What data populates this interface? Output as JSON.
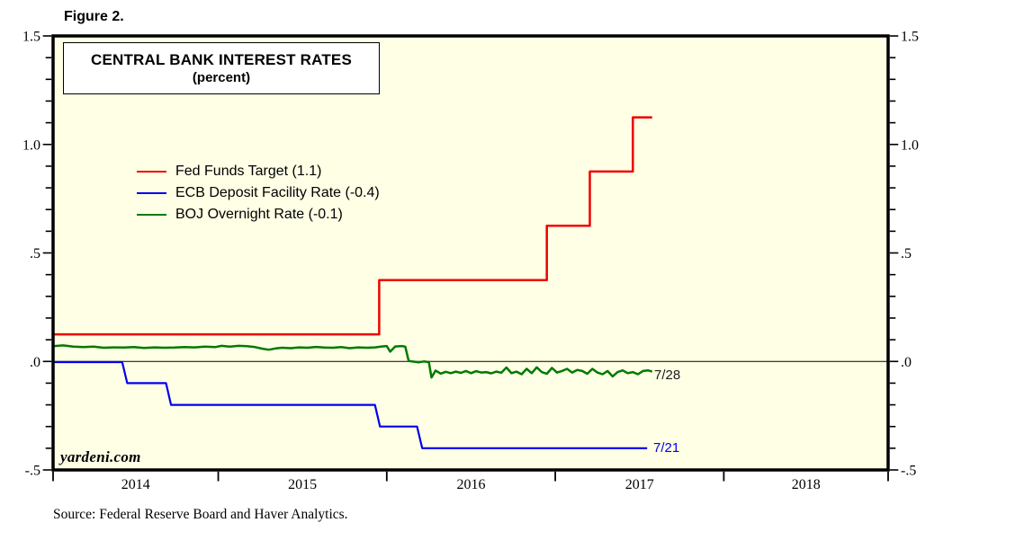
{
  "figure_label": "Figure 2.",
  "chart_data": {
    "type": "line",
    "title": "CENTRAL BANK INTEREST RATES",
    "subtitle": "(percent)",
    "source": "Source: Federal Reserve Board and Haver Analytics.",
    "watermark": "yardeni.com",
    "colors": {
      "plot_bg": "#FFFFE6",
      "frame": "#000000",
      "fed_funds": "#EE0000",
      "ecb": "#0000EE",
      "boj": "#007A00",
      "annotation": "#1a1a1a"
    },
    "x_axis": {
      "range_years": [
        2014.02,
        2018.975
      ],
      "tick_boundaries": [
        2015,
        2016,
        2017,
        2018
      ],
      "year_labels": [
        "2014",
        "2015",
        "2016",
        "2017",
        "2018"
      ],
      "grid": false
    },
    "y_axis": {
      "range": [
        -0.5,
        1.5
      ],
      "minor_tick_step": 0.1,
      "major_tick_step": 0.5,
      "tick_labels": [
        {
          "text": "1.5",
          "value": 1.5
        },
        {
          "text": "1.0",
          "value": 1.0
        },
        {
          "text": ".5",
          "value": 0.5
        },
        {
          "text": ".0",
          "value": 0.0
        },
        {
          "text": "-.5",
          "value": -0.5
        }
      ],
      "mirrored_right": true,
      "zero_line": true
    },
    "legend": {
      "position": "upper-left-inside",
      "items": [
        {
          "label": "Fed Funds Target (1.1)",
          "color": "#EE0000"
        },
        {
          "label": "ECB Deposit Facility Rate (-0.4)",
          "color": "#0000EE"
        },
        {
          "label": "BOJ Overnight Rate (-0.1)",
          "color": "#007A00"
        }
      ]
    },
    "series": [
      {
        "name": "Fed Funds Target",
        "color": "#EE0000",
        "width": 2.5,
        "end_label": null,
        "points": [
          [
            2014.02,
            0.125
          ],
          [
            2015.955,
            0.125
          ],
          [
            2015.955,
            0.375
          ],
          [
            2016.95,
            0.375
          ],
          [
            2016.95,
            0.625
          ],
          [
            2017.205,
            0.625
          ],
          [
            2017.205,
            0.875
          ],
          [
            2017.46,
            0.875
          ],
          [
            2017.46,
            1.125
          ],
          [
            2017.575,
            1.125
          ]
        ]
      },
      {
        "name": "ECB Deposit Facility Rate",
        "color": "#0000EE",
        "width": 2.2,
        "end_label": "7/21",
        "points": [
          [
            2014.02,
            -0.003
          ],
          [
            2014.43,
            -0.003
          ],
          [
            2014.46,
            -0.1
          ],
          [
            2014.69,
            -0.1
          ],
          [
            2014.72,
            -0.2
          ],
          [
            2015.93,
            -0.2
          ],
          [
            2015.96,
            -0.3
          ],
          [
            2016.18,
            -0.3
          ],
          [
            2016.21,
            -0.4
          ],
          [
            2017.545,
            -0.4
          ]
        ]
      },
      {
        "name": "BOJ Overnight Rate",
        "color": "#007A00",
        "width": 2.5,
        "end_label": "7/28",
        "points": [
          [
            2014.02,
            0.07
          ],
          [
            2014.08,
            0.074
          ],
          [
            2014.14,
            0.068
          ],
          [
            2014.2,
            0.066
          ],
          [
            2014.26,
            0.068
          ],
          [
            2014.32,
            0.063
          ],
          [
            2014.38,
            0.065
          ],
          [
            2014.44,
            0.064
          ],
          [
            2014.5,
            0.066
          ],
          [
            2014.56,
            0.062
          ],
          [
            2014.62,
            0.065
          ],
          [
            2014.68,
            0.063
          ],
          [
            2014.74,
            0.064
          ],
          [
            2014.8,
            0.066
          ],
          [
            2014.86,
            0.065
          ],
          [
            2014.92,
            0.068
          ],
          [
            2014.98,
            0.066
          ],
          [
            2015.02,
            0.072
          ],
          [
            2015.07,
            0.068
          ],
          [
            2015.12,
            0.072
          ],
          [
            2015.17,
            0.07
          ],
          [
            2015.22,
            0.066
          ],
          [
            2015.26,
            0.059
          ],
          [
            2015.3,
            0.054
          ],
          [
            2015.34,
            0.06
          ],
          [
            2015.38,
            0.063
          ],
          [
            2015.43,
            0.061
          ],
          [
            2015.48,
            0.065
          ],
          [
            2015.53,
            0.063
          ],
          [
            2015.58,
            0.067
          ],
          [
            2015.63,
            0.064
          ],
          [
            2015.68,
            0.063
          ],
          [
            2015.73,
            0.066
          ],
          [
            2015.78,
            0.061
          ],
          [
            2015.83,
            0.065
          ],
          [
            2015.88,
            0.063
          ],
          [
            2015.93,
            0.065
          ],
          [
            2015.97,
            0.069
          ],
          [
            2016.0,
            0.071
          ],
          [
            2016.02,
            0.045
          ],
          [
            2016.05,
            0.069
          ],
          [
            2016.09,
            0.071
          ],
          [
            2016.11,
            0.068
          ],
          [
            2016.13,
            0.002
          ],
          [
            2016.16,
            -0.001
          ],
          [
            2016.19,
            -0.004
          ],
          [
            2016.22,
            0.0
          ],
          [
            2016.25,
            -0.003
          ],
          [
            2016.265,
            -0.074
          ],
          [
            2016.29,
            -0.042
          ],
          [
            2016.32,
            -0.056
          ],
          [
            2016.35,
            -0.048
          ],
          [
            2016.38,
            -0.054
          ],
          [
            2016.41,
            -0.047
          ],
          [
            2016.44,
            -0.053
          ],
          [
            2016.47,
            -0.044
          ],
          [
            2016.5,
            -0.054
          ],
          [
            2016.53,
            -0.045
          ],
          [
            2016.56,
            -0.051
          ],
          [
            2016.59,
            -0.049
          ],
          [
            2016.62,
            -0.055
          ],
          [
            2016.65,
            -0.047
          ],
          [
            2016.68,
            -0.052
          ],
          [
            2016.71,
            -0.028
          ],
          [
            2016.74,
            -0.054
          ],
          [
            2016.77,
            -0.047
          ],
          [
            2016.8,
            -0.059
          ],
          [
            2016.83,
            -0.034
          ],
          [
            2016.86,
            -0.054
          ],
          [
            2016.89,
            -0.027
          ],
          [
            2016.92,
            -0.049
          ],
          [
            2016.95,
            -0.057
          ],
          [
            2016.98,
            -0.03
          ],
          [
            2017.01,
            -0.051
          ],
          [
            2017.04,
            -0.044
          ],
          [
            2017.07,
            -0.034
          ],
          [
            2017.1,
            -0.051
          ],
          [
            2017.13,
            -0.039
          ],
          [
            2017.16,
            -0.044
          ],
          [
            2017.19,
            -0.057
          ],
          [
            2017.22,
            -0.034
          ],
          [
            2017.25,
            -0.051
          ],
          [
            2017.28,
            -0.059
          ],
          [
            2017.31,
            -0.044
          ],
          [
            2017.34,
            -0.069
          ],
          [
            2017.37,
            -0.049
          ],
          [
            2017.4,
            -0.041
          ],
          [
            2017.43,
            -0.054
          ],
          [
            2017.46,
            -0.049
          ],
          [
            2017.49,
            -0.059
          ],
          [
            2017.52,
            -0.044
          ],
          [
            2017.55,
            -0.041
          ],
          [
            2017.575,
            -0.047
          ]
        ]
      }
    ]
  }
}
